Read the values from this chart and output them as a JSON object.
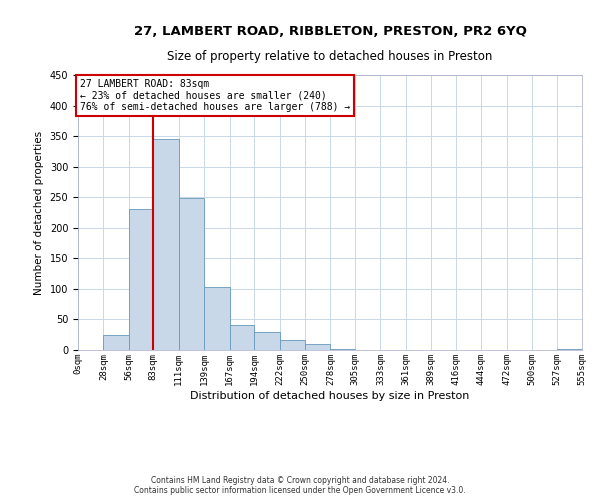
{
  "title": "27, LAMBERT ROAD, RIBBLETON, PRESTON, PR2 6YQ",
  "subtitle": "Size of property relative to detached houses in Preston",
  "xlabel": "Distribution of detached houses by size in Preston",
  "ylabel": "Number of detached properties",
  "bin_edges": [
    0,
    28,
    56,
    83,
    111,
    139,
    167,
    194,
    222,
    250,
    278,
    305,
    333,
    361,
    389,
    416,
    444,
    472,
    500,
    527,
    555
  ],
  "bar_heights": [
    0,
    25,
    230,
    345,
    248,
    103,
    41,
    30,
    16,
    10,
    2,
    0,
    0,
    0,
    0,
    0,
    0,
    0,
    0,
    1
  ],
  "bar_color": "#c8d8e8",
  "bar_edgecolor": "#6699bb",
  "reference_line_x": 83,
  "reference_line_color": "#cc0000",
  "ylim": [
    0,
    450
  ],
  "yticks": [
    0,
    50,
    100,
    150,
    200,
    250,
    300,
    350,
    400,
    450
  ],
  "annotation_title": "27 LAMBERT ROAD: 83sqm",
  "annotation_line1": "← 23% of detached houses are smaller (240)",
  "annotation_line2": "76% of semi-detached houses are larger (788) →",
  "annotation_box_color": "#cc0000",
  "annotation_box_fill": "#ffffff",
  "footnote1": "Contains HM Land Registry data © Crown copyright and database right 2024.",
  "footnote2": "Contains public sector information licensed under the Open Government Licence v3.0.",
  "tick_labels": [
    "0sqm",
    "28sqm",
    "56sqm",
    "83sqm",
    "111sqm",
    "139sqm",
    "167sqm",
    "194sqm",
    "222sqm",
    "250sqm",
    "278sqm",
    "305sqm",
    "333sqm",
    "361sqm",
    "389sqm",
    "416sqm",
    "444sqm",
    "472sqm",
    "500sqm",
    "527sqm",
    "555sqm"
  ],
  "background_color": "#ffffff",
  "grid_color": "#c8d8e8",
  "title_fontsize": 9.5,
  "subtitle_fontsize": 8.5,
  "xlabel_fontsize": 8,
  "ylabel_fontsize": 7.5,
  "tick_fontsize": 6.5,
  "annotation_fontsize": 7,
  "footnote_fontsize": 5.5
}
